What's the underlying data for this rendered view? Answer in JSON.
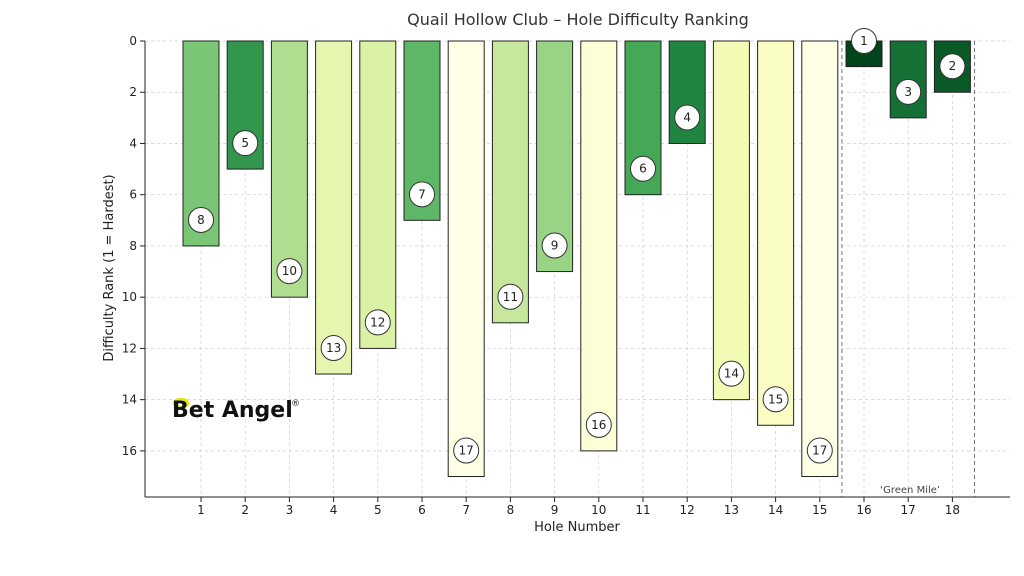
{
  "chart_data": {
    "type": "bar",
    "title": "Quail Hollow Club – Hole Difficulty Ranking",
    "xlabel": "Hole Number",
    "ylabel": "Difficulty Rank (1 = Hardest)",
    "categories": [
      "1",
      "2",
      "3",
      "4",
      "5",
      "6",
      "7",
      "8",
      "9",
      "10",
      "11",
      "12",
      "13",
      "14",
      "15",
      "16",
      "17",
      "18"
    ],
    "values": [
      8,
      5,
      10,
      13,
      12,
      7,
      17,
      11,
      9,
      16,
      6,
      4,
      14,
      15,
      17,
      1,
      3,
      2
    ],
    "ylim": [
      0,
      17.8
    ],
    "y_inverted": true,
    "yticks": [
      0,
      2,
      4,
      6,
      8,
      10,
      12,
      14,
      16
    ],
    "grid": true,
    "color_scale": [
      "#00441b",
      "#1a7f3d",
      "#4aae5b",
      "#98d386",
      "#d7efa3",
      "#f7fcb9",
      "#ffffe5"
    ],
    "annotation": "‘Green Mile’",
    "annotation_range": [
      "16",
      "18"
    ]
  },
  "logo": {
    "text": "Bet Angel",
    "mark": "®"
  }
}
